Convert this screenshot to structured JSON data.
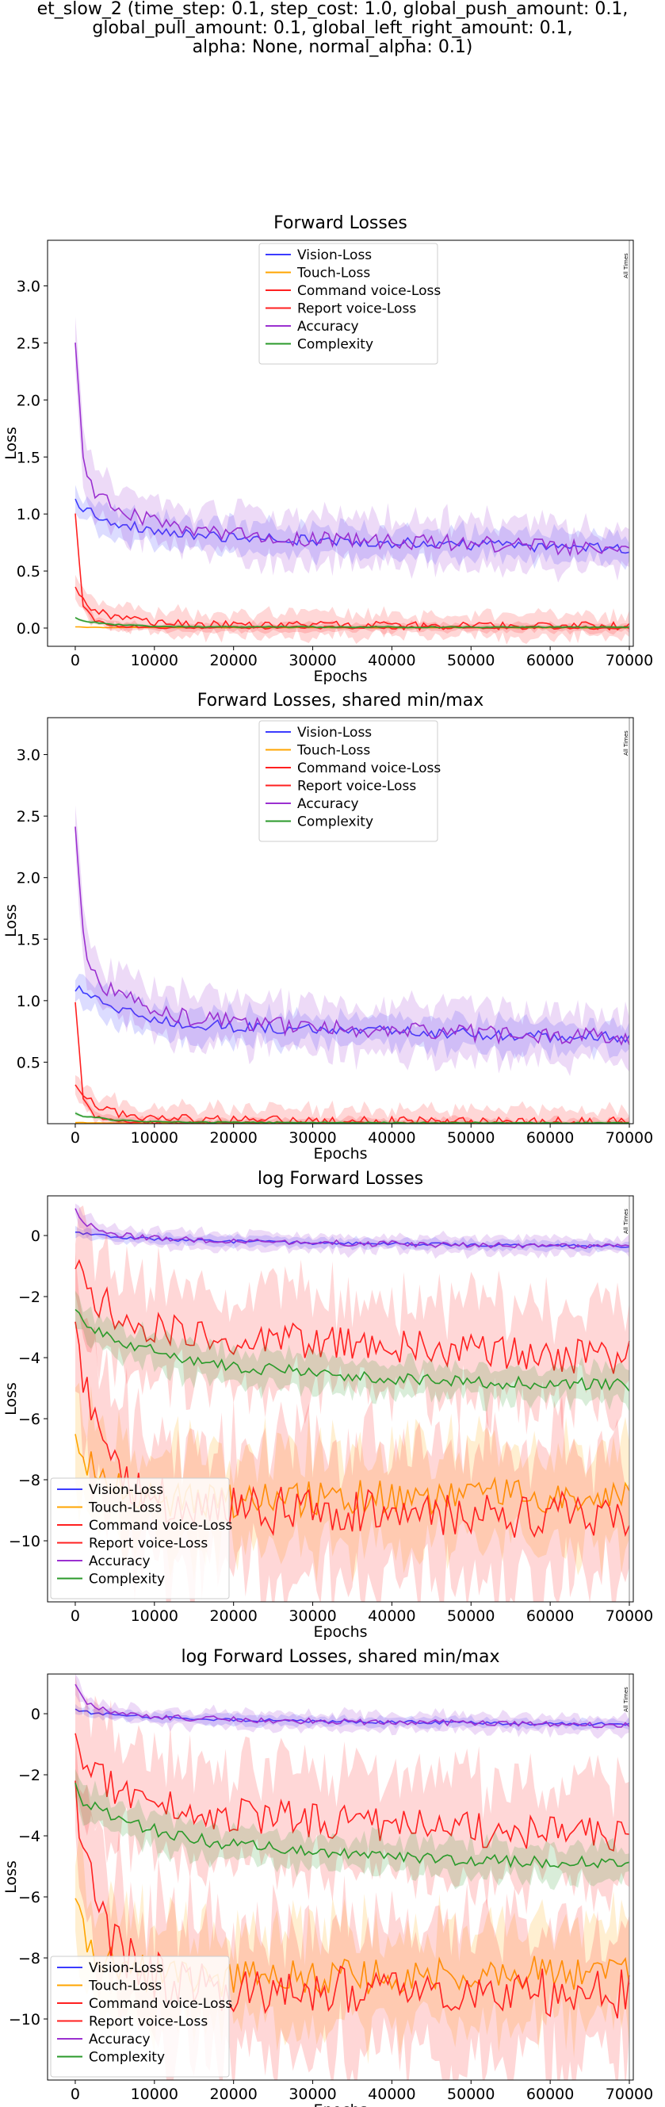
{
  "figure": {
    "title_lines": [
      "et_slow_2 (time_step: 0.1, step_cost: 1.0, global_push_amount: 0.1,",
      "global_pull_amount: 0.1, global_left_right_amount: 0.1,",
      "alpha: None, normal_alpha: 0.1)"
    ],
    "marker_label": "All Times",
    "colors": {
      "Vision-Loss": "#3b3bff",
      "Touch-Loss": "#ffa500",
      "Command voice-Loss": "#ff2020",
      "Report voice-Loss": "#ff2020",
      "Accuracy": "#9b30d0",
      "Complexity": "#2a9a2a"
    }
  },
  "chart_data": [
    {
      "type": "line",
      "title": "Forward Losses",
      "xlabel": "Epochs",
      "ylabel": "Loss",
      "xlim": [
        -3500,
        70500
      ],
      "ylim": [
        -0.16,
        3.4
      ],
      "xticks": [
        0,
        10000,
        20000,
        30000,
        40000,
        50000,
        60000,
        70000
      ],
      "yticks": [
        0.0,
        0.5,
        1.0,
        1.5,
        2.0,
        2.5,
        3.0
      ],
      "ytick_labels": [
        "0.0",
        "0.5",
        "1.0",
        "1.5",
        "2.0",
        "2.5",
        "3.0"
      ],
      "legend_position": "upper-center",
      "grid": false,
      "series": [
        {
          "name": "Vision-Loss",
          "x": [
            0,
            1000,
            2500,
            5000,
            10000,
            15000,
            20000,
            30000,
            40000,
            50000,
            60000,
            70000
          ],
          "values": [
            1.12,
            1.05,
            1.0,
            0.93,
            0.85,
            0.81,
            0.79,
            0.77,
            0.75,
            0.73,
            0.71,
            0.7
          ],
          "band": 0.1
        },
        {
          "name": "Touch-Loss",
          "x": [
            0,
            1000,
            2500,
            5000,
            10000,
            20000,
            40000,
            70000
          ],
          "values": [
            0.01,
            0.008,
            0.006,
            0.005,
            0.004,
            0.004,
            0.003,
            0.003
          ],
          "band": 0.004
        },
        {
          "name": "Command voice-Loss",
          "x": [
            0,
            1000,
            2500,
            5000,
            10000,
            15000,
            20000,
            30000,
            40000,
            50000,
            60000,
            70000
          ],
          "values": [
            0.35,
            0.24,
            0.15,
            0.09,
            0.05,
            0.035,
            0.03,
            0.025,
            0.02,
            0.02,
            0.018,
            0.017
          ],
          "band": 0.08
        },
        {
          "name": "Report voice-Loss",
          "x": [
            0,
            1000,
            2500,
            5000,
            10000,
            20000,
            40000,
            70000
          ],
          "values": [
            1.0,
            0.2,
            0.06,
            0.02,
            0.008,
            0.005,
            0.004,
            0.003
          ],
          "band": 0.03
        },
        {
          "name": "Accuracy",
          "x": [
            0,
            1000,
            2500,
            5000,
            10000,
            15000,
            20000,
            30000,
            40000,
            50000,
            60000,
            70000
          ],
          "values": [
            2.48,
            1.5,
            1.2,
            1.05,
            0.92,
            0.86,
            0.82,
            0.78,
            0.76,
            0.74,
            0.71,
            0.7
          ],
          "band": 0.16
        },
        {
          "name": "Complexity",
          "x": [
            0,
            1000,
            2500,
            5000,
            10000,
            20000,
            40000,
            70000
          ],
          "values": [
            0.09,
            0.06,
            0.05,
            0.03,
            0.015,
            0.01,
            0.008,
            0.007
          ],
          "band": 0.01
        }
      ]
    },
    {
      "type": "line",
      "title": "Forward Losses, shared min/max",
      "xlabel": "Epochs",
      "ylabel": "Loss",
      "xlim": [
        -3500,
        70500
      ],
      "ylim": [
        0.0,
        3.3
      ],
      "xticks": [
        0,
        10000,
        20000,
        30000,
        40000,
        50000,
        60000,
        70000
      ],
      "yticks": [
        0.5,
        1.0,
        1.5,
        2.0,
        2.5,
        3.0
      ],
      "ytick_labels": [
        "0.5",
        "1.0",
        "1.5",
        "2.0",
        "2.5",
        "3.0"
      ],
      "legend_position": "upper-center",
      "grid": false,
      "series": [
        {
          "name": "Vision-Loss",
          "x": [
            0,
            1000,
            2500,
            5000,
            10000,
            15000,
            20000,
            30000,
            40000,
            50000,
            60000,
            70000
          ],
          "values": [
            1.12,
            1.05,
            1.0,
            0.93,
            0.85,
            0.81,
            0.79,
            0.77,
            0.75,
            0.73,
            0.71,
            0.7
          ],
          "band": 0.1
        },
        {
          "name": "Touch-Loss",
          "x": [
            0,
            1000,
            2500,
            5000,
            10000,
            20000,
            40000,
            70000
          ],
          "values": [
            0.01,
            0.008,
            0.006,
            0.005,
            0.004,
            0.004,
            0.003,
            0.003
          ],
          "band": 0.004
        },
        {
          "name": "Command voice-Loss",
          "x": [
            0,
            1000,
            2500,
            5000,
            10000,
            15000,
            20000,
            30000,
            40000,
            50000,
            60000,
            70000
          ],
          "values": [
            0.35,
            0.24,
            0.15,
            0.09,
            0.05,
            0.035,
            0.03,
            0.025,
            0.02,
            0.02,
            0.018,
            0.017
          ],
          "band": 0.08
        },
        {
          "name": "Report voice-Loss",
          "x": [
            0,
            1000,
            2500,
            5000,
            10000,
            20000,
            40000,
            70000
          ],
          "values": [
            1.0,
            0.2,
            0.06,
            0.02,
            0.008,
            0.005,
            0.004,
            0.003
          ],
          "band": 0.03
        },
        {
          "name": "Accuracy",
          "x": [
            0,
            1000,
            2500,
            5000,
            10000,
            15000,
            20000,
            30000,
            40000,
            50000,
            60000,
            70000
          ],
          "values": [
            2.48,
            1.5,
            1.2,
            1.05,
            0.92,
            0.86,
            0.82,
            0.78,
            0.76,
            0.74,
            0.71,
            0.7
          ],
          "band": 0.16
        },
        {
          "name": "Complexity",
          "x": [
            0,
            1000,
            2500,
            5000,
            10000,
            20000,
            40000,
            70000
          ],
          "values": [
            0.09,
            0.06,
            0.05,
            0.03,
            0.015,
            0.01,
            0.008,
            0.007
          ],
          "band": 0.01
        }
      ]
    },
    {
      "type": "line",
      "title": "log Forward Losses",
      "xlabel": "Epochs",
      "ylabel": "Loss",
      "xlim": [
        -3500,
        70500
      ],
      "ylim": [
        -12.0,
        1.3
      ],
      "xticks": [
        0,
        10000,
        20000,
        30000,
        40000,
        50000,
        60000,
        70000
      ],
      "yticks": [
        0,
        -2,
        -4,
        -6,
        -8,
        -10
      ],
      "ytick_labels": [
        "0",
        "−2",
        "−4",
        "−6",
        "−8",
        "−10"
      ],
      "legend_position": "lower-left",
      "grid": false,
      "series": [
        {
          "name": "Vision-Loss",
          "x": [
            0,
            2500,
            5000,
            10000,
            20000,
            30000,
            40000,
            50000,
            60000,
            70000
          ],
          "values": [
            0.12,
            0.02,
            -0.05,
            -0.12,
            -0.2,
            -0.24,
            -0.27,
            -0.3,
            -0.33,
            -0.35
          ],
          "band": 0.12
        },
        {
          "name": "Touch-Loss",
          "x": [
            0,
            1000,
            2500,
            5000,
            10000,
            15000,
            20000,
            30000,
            40000,
            50000,
            60000,
            70000
          ],
          "values": [
            -6.4,
            -7.2,
            -7.8,
            -8.2,
            -8.6,
            -8.7,
            -8.7,
            -8.6,
            -8.6,
            -8.5,
            -8.5,
            -8.5
          ],
          "band": 1.3
        },
        {
          "name": "Command voice-Loss",
          "x": [
            0,
            1000,
            2500,
            5000,
            10000,
            15000,
            20000,
            30000,
            40000,
            50000,
            60000,
            70000
          ],
          "values": [
            -1.0,
            -1.5,
            -2.0,
            -2.5,
            -3.0,
            -3.2,
            -3.3,
            -3.5,
            -3.6,
            -3.8,
            -3.9,
            -4.0
          ],
          "band": 1.3
        },
        {
          "name": "Report voice-Loss",
          "x": [
            0,
            1000,
            2500,
            5000,
            7500,
            10000,
            15000,
            20000,
            30000,
            40000,
            50000,
            60000,
            70000
          ],
          "values": [
            -2.7,
            -4.5,
            -6.2,
            -7.5,
            -8.2,
            -8.6,
            -8.9,
            -9.0,
            -9.0,
            -9.1,
            -9.1,
            -9.1,
            -9.2
          ],
          "band": 1.8
        },
        {
          "name": "Accuracy",
          "x": [
            0,
            1000,
            2500,
            5000,
            10000,
            20000,
            30000,
            40000,
            50000,
            60000,
            70000
          ],
          "values": [
            0.9,
            0.45,
            0.25,
            0.05,
            -0.1,
            -0.2,
            -0.24,
            -0.27,
            -0.3,
            -0.33,
            -0.37
          ],
          "band": 0.22
        },
        {
          "name": "Complexity",
          "x": [
            0,
            1000,
            2500,
            5000,
            10000,
            15000,
            20000,
            30000,
            40000,
            50000,
            60000,
            70000
          ],
          "values": [
            -2.4,
            -2.9,
            -3.1,
            -3.4,
            -3.8,
            -4.1,
            -4.3,
            -4.5,
            -4.7,
            -4.8,
            -4.85,
            -4.9
          ],
          "band": 0.45
        }
      ]
    },
    {
      "type": "line",
      "title": "log Forward Losses, shared min/max",
      "xlabel": "Epochs",
      "ylabel": "Loss",
      "xlim": [
        -3500,
        70500
      ],
      "ylim": [
        -12.0,
        1.3
      ],
      "xticks": [
        0,
        10000,
        20000,
        30000,
        40000,
        50000,
        60000,
        70000
      ],
      "yticks": [
        0,
        -2,
        -4,
        -6,
        -8,
        -10
      ],
      "ytick_labels": [
        "0",
        "−2",
        "−4",
        "−6",
        "−8",
        "−10"
      ],
      "legend_position": "lower-left",
      "grid": false,
      "series": [
        {
          "name": "Vision-Loss",
          "x": [
            0,
            2500,
            5000,
            10000,
            20000,
            30000,
            40000,
            50000,
            60000,
            70000
          ],
          "values": [
            0.12,
            0.02,
            -0.05,
            -0.12,
            -0.2,
            -0.24,
            -0.27,
            -0.3,
            -0.33,
            -0.35
          ],
          "band": 0.12
        },
        {
          "name": "Touch-Loss",
          "x": [
            0,
            1000,
            2500,
            5000,
            10000,
            15000,
            20000,
            30000,
            40000,
            50000,
            60000,
            70000
          ],
          "values": [
            -6.4,
            -7.2,
            -7.8,
            -8.2,
            -8.6,
            -8.7,
            -8.7,
            -8.6,
            -8.6,
            -8.5,
            -8.5,
            -8.5
          ],
          "band": 1.3
        },
        {
          "name": "Command voice-Loss",
          "x": [
            0,
            1000,
            2500,
            5000,
            10000,
            15000,
            20000,
            30000,
            40000,
            50000,
            60000,
            70000
          ],
          "values": [
            -1.0,
            -1.5,
            -2.0,
            -2.5,
            -3.0,
            -3.2,
            -3.3,
            -3.5,
            -3.6,
            -3.8,
            -3.9,
            -4.0
          ],
          "band": 1.3
        },
        {
          "name": "Report voice-Loss",
          "x": [
            0,
            1000,
            2500,
            5000,
            7500,
            10000,
            15000,
            20000,
            30000,
            40000,
            50000,
            60000,
            70000
          ],
          "values": [
            -2.7,
            -4.5,
            -6.2,
            -7.5,
            -8.2,
            -8.6,
            -8.9,
            -9.0,
            -9.0,
            -9.1,
            -9.1,
            -9.1,
            -9.2
          ],
          "band": 1.8
        },
        {
          "name": "Accuracy",
          "x": [
            0,
            1000,
            2500,
            5000,
            10000,
            20000,
            30000,
            40000,
            50000,
            60000,
            70000
          ],
          "values": [
            0.9,
            0.45,
            0.25,
            0.05,
            -0.1,
            -0.2,
            -0.24,
            -0.27,
            -0.3,
            -0.33,
            -0.37
          ],
          "band": 0.22
        },
        {
          "name": "Complexity",
          "x": [
            0,
            1000,
            2500,
            5000,
            10000,
            15000,
            20000,
            30000,
            40000,
            50000,
            60000,
            70000
          ],
          "values": [
            -2.4,
            -2.9,
            -3.1,
            -3.4,
            -3.8,
            -4.1,
            -4.3,
            -4.5,
            -4.7,
            -4.8,
            -4.85,
            -4.9
          ],
          "band": 0.45
        }
      ]
    }
  ]
}
